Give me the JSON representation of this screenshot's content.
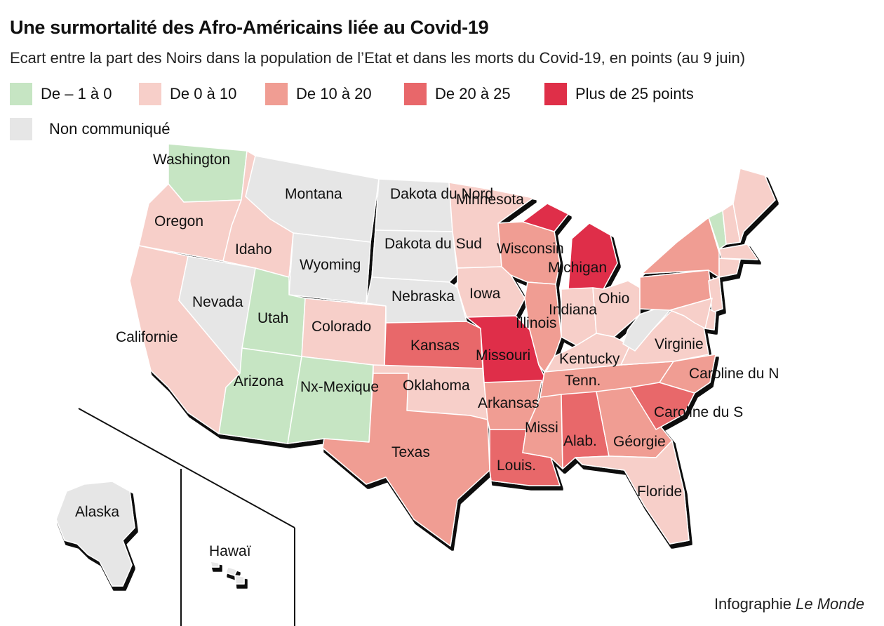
{
  "title": "Une surmortalité des Afro-Américains liée au Covid-19",
  "subtitle": "Ecart entre la part des Noirs dans la population de l’Etat et dans les morts du Covid-19, en points (au 9 juin)",
  "legend": [
    {
      "key": "c1",
      "label": "De – 1 à 0",
      "color": "#c6e5c3"
    },
    {
      "key": "c2",
      "label": "De 0 à 10",
      "color": "#f7cfc9"
    },
    {
      "key": "c3",
      "label": "De 10 à 20",
      "color": "#f09d93"
    },
    {
      "key": "c4",
      "label": "De 20 à 25",
      "color": "#e8676a"
    },
    {
      "key": "c5",
      "label": "Plus de 25 points",
      "color": "#df2f48"
    },
    {
      "key": "na",
      "label": "Non communiqué",
      "color": "#e6e6e6"
    }
  ],
  "colors": {
    "c1": "#c6e5c3",
    "c2": "#f7cfc9",
    "c3": "#f09d93",
    "c4": "#e8676a",
    "c5": "#df2f48",
    "na": "#e6e6e6",
    "border": "#ffffff",
    "shadow": "#111111"
  },
  "states": {
    "washington": {
      "label": "Washington",
      "cat": "c1"
    },
    "oregon": {
      "label": "Oregon",
      "cat": "c2"
    },
    "california": {
      "label": "Californie",
      "cat": "c2"
    },
    "nevada": {
      "label": "Nevada",
      "cat": "na"
    },
    "idaho": {
      "label": "Idaho",
      "cat": "c2"
    },
    "montana": {
      "label": "Montana",
      "cat": "na"
    },
    "wyoming": {
      "label": "Wyoming",
      "cat": "na"
    },
    "utah": {
      "label": "Utah",
      "cat": "c1"
    },
    "arizona": {
      "label": "Arizona",
      "cat": "c1"
    },
    "colorado": {
      "label": "Colorado",
      "cat": "c2"
    },
    "newmexico": {
      "label": "Nx-Mexique",
      "cat": "c1"
    },
    "northdakota": {
      "label": "Dakota du Nord",
      "cat": "na"
    },
    "southdakota": {
      "label": "Dakota du Sud",
      "cat": "na"
    },
    "nebraska": {
      "label": "Nebraska",
      "cat": "na"
    },
    "kansas": {
      "label": "Kansas",
      "cat": "c4"
    },
    "oklahoma": {
      "label": "Oklahoma",
      "cat": "c2"
    },
    "texas": {
      "label": "Texas",
      "cat": "c3"
    },
    "minnesota": {
      "label": "Minnesota",
      "cat": "c2"
    },
    "iowa": {
      "label": "Iowa",
      "cat": "c2"
    },
    "missouri": {
      "label": "Missouri",
      "cat": "c5"
    },
    "arkansas": {
      "label": "Arkansas",
      "cat": "c3"
    },
    "louisiana": {
      "label": "Louis.",
      "cat": "c4"
    },
    "wisconsin": {
      "label": "Wisconsin",
      "cat": "c3"
    },
    "illinois": {
      "label": "Illinois",
      "cat": "c3"
    },
    "michigan": {
      "label": "Michigan",
      "cat": "c5"
    },
    "indiana": {
      "label": "Indiana",
      "cat": "c2"
    },
    "ohio": {
      "label": "Ohio",
      "cat": "c2"
    },
    "kentucky": {
      "label": "Kentucky",
      "cat": "c2"
    },
    "tennessee": {
      "label": "Tenn.",
      "cat": "c3"
    },
    "mississippi": {
      "label": "Missi",
      "cat": "c3"
    },
    "alabama": {
      "label": "Alab.",
      "cat": "c4"
    },
    "georgia": {
      "label": "Géorgie",
      "cat": "c3"
    },
    "florida": {
      "label": "Floride",
      "cat": "c2"
    },
    "southcarolina": {
      "label": "Caroline du S",
      "cat": "c4"
    },
    "northcarolina": {
      "label": "Caroline du N",
      "cat": "c3"
    },
    "virginia": {
      "label": "Virginie",
      "cat": "c2"
    },
    "westvirginia": {
      "label": "",
      "cat": "na"
    },
    "pennsylvania": {
      "label": "",
      "cat": "c3"
    },
    "newyork": {
      "label": "",
      "cat": "c3"
    },
    "vermont": {
      "label": "",
      "cat": "c1"
    },
    "newhampshire": {
      "label": "",
      "cat": "c2"
    },
    "maine": {
      "label": "",
      "cat": "c2"
    },
    "massachusetts": {
      "label": "",
      "cat": "c2"
    },
    "connecticut": {
      "label": "",
      "cat": "c2"
    },
    "newjersey": {
      "label": "",
      "cat": "c2"
    },
    "delaware": {
      "label": "",
      "cat": "c2"
    },
    "maryland": {
      "label": "",
      "cat": "c2"
    },
    "alaska": {
      "label": "Alaska",
      "cat": "na"
    },
    "hawaii": {
      "label": "Hawaï",
      "cat": "na"
    }
  },
  "credit": {
    "prefix": "Infographie ",
    "brand": "Le Monde"
  }
}
